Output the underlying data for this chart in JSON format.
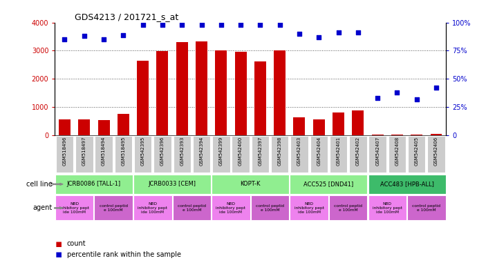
{
  "title": "GDS4213 / 201721_s_at",
  "gsm_ids": [
    "GSM518496",
    "GSM518497",
    "GSM518494",
    "GSM518495",
    "GSM542395",
    "GSM542396",
    "GSM542393",
    "GSM542394",
    "GSM542399",
    "GSM542400",
    "GSM542397",
    "GSM542398",
    "GSM542403",
    "GSM542404",
    "GSM542401",
    "GSM542402",
    "GSM542407",
    "GSM542408",
    "GSM542405",
    "GSM542406"
  ],
  "counts": [
    550,
    570,
    530,
    750,
    2650,
    2980,
    3310,
    3320,
    3020,
    2950,
    2620,
    3020,
    640,
    570,
    810,
    890,
    30,
    30,
    30,
    50
  ],
  "percentile": [
    85,
    88,
    85,
    89,
    98,
    98,
    98,
    98,
    98,
    98,
    98,
    98,
    90,
    87,
    91,
    91,
    33,
    38,
    32,
    42
  ],
  "cell_lines": [
    {
      "label": "JCRB0086 [TALL-1]",
      "start": 0,
      "end": 4,
      "color": "#90ee90"
    },
    {
      "label": "JCRB0033 [CEM]",
      "start": 4,
      "end": 8,
      "color": "#90ee90"
    },
    {
      "label": "KOPT-K",
      "start": 8,
      "end": 12,
      "color": "#90ee90"
    },
    {
      "label": "ACC525 [DND41]",
      "start": 12,
      "end": 16,
      "color": "#90ee90"
    },
    {
      "label": "ACC483 [HPB-ALL]",
      "start": 16,
      "end": 20,
      "color": "#3dbb6a"
    }
  ],
  "agents": [
    {
      "label": "NBD\ninhibitory pept\nide 100mM",
      "start": 0,
      "end": 2,
      "color": "#ee82ee"
    },
    {
      "label": "control peptid\ne 100mM",
      "start": 2,
      "end": 4,
      "color": "#cc66cc"
    },
    {
      "label": "NBD\ninhibitory pept\nide 100mM",
      "start": 4,
      "end": 6,
      "color": "#ee82ee"
    },
    {
      "label": "control peptid\ne 100mM",
      "start": 6,
      "end": 8,
      "color": "#cc66cc"
    },
    {
      "label": "NBD\ninhibitory pept\nide 100mM",
      "start": 8,
      "end": 10,
      "color": "#ee82ee"
    },
    {
      "label": "control peptid\ne 100mM",
      "start": 10,
      "end": 12,
      "color": "#cc66cc"
    },
    {
      "label": "NBD\ninhibitory pept\nide 100mM",
      "start": 12,
      "end": 14,
      "color": "#ee82ee"
    },
    {
      "label": "control peptid\ne 100mM",
      "start": 14,
      "end": 16,
      "color": "#cc66cc"
    },
    {
      "label": "NBD\ninhibitory pept\nide 100mM",
      "start": 16,
      "end": 18,
      "color": "#ee82ee"
    },
    {
      "label": "control peptid\ne 100mM",
      "start": 18,
      "end": 20,
      "color": "#cc66cc"
    }
  ],
  "ylim_left": [
    0,
    4000
  ],
  "ylim_right": [
    0,
    100
  ],
  "yticks_left": [
    0,
    1000,
    2000,
    3000,
    4000
  ],
  "yticks_right": [
    0,
    25,
    50,
    75,
    100
  ],
  "bar_color": "#cc0000",
  "scatter_color": "#0000cc",
  "bg_color": "#ffffff",
  "grid_color": "#555555",
  "xtick_bg": "#cccccc"
}
